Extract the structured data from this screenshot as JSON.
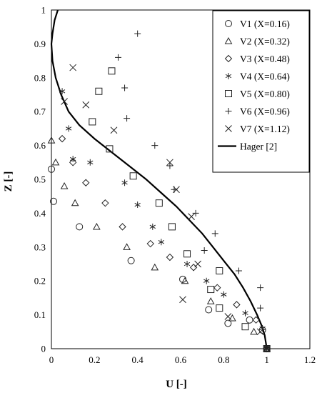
{
  "chart_data": {
    "type": "scatter",
    "xlabel": "U [-]",
    "ylabel": "Z [-]",
    "xlim": [
      0,
      1.2
    ],
    "ylim": [
      0,
      1
    ],
    "xticks": [
      "0",
      "0.2",
      "0.4",
      "0.6",
      "0.8",
      "1",
      "1.2"
    ],
    "yticks": [
      "0",
      "0.1",
      "0.2",
      "0.3",
      "0.4",
      "0.5",
      "0.6",
      "0.7",
      "0.8",
      "0.9",
      "1"
    ],
    "legend_position": "top-right",
    "series": [
      {
        "name": "V1 (X=0.16)",
        "marker": "circle",
        "points": [
          [
            0.0,
            0.53
          ],
          [
            0.01,
            0.435
          ],
          [
            0.13,
            0.36
          ],
          [
            0.37,
            0.26
          ],
          [
            0.61,
            0.205
          ],
          [
            0.73,
            0.115
          ],
          [
            0.82,
            0.075
          ],
          [
            0.92,
            0.085
          ],
          [
            0.98,
            0.055
          ],
          [
            1.0,
            0.0
          ]
        ]
      },
      {
        "name": "V2 (X=0.32)",
        "marker": "triangle",
        "points": [
          [
            0.0,
            0.615
          ],
          [
            0.02,
            0.55
          ],
          [
            0.06,
            0.48
          ],
          [
            0.11,
            0.43
          ],
          [
            0.21,
            0.36
          ],
          [
            0.35,
            0.3
          ],
          [
            0.48,
            0.24
          ],
          [
            0.62,
            0.2
          ],
          [
            0.74,
            0.14
          ],
          [
            0.84,
            0.09
          ],
          [
            0.94,
            0.05
          ],
          [
            1.0,
            0.0
          ]
        ]
      },
      {
        "name": "V3 (X=0.48)",
        "marker": "diamond",
        "points": [
          [
            0.05,
            0.62
          ],
          [
            0.1,
            0.55
          ],
          [
            0.16,
            0.49
          ],
          [
            0.25,
            0.43
          ],
          [
            0.33,
            0.36
          ],
          [
            0.46,
            0.31
          ],
          [
            0.55,
            0.27
          ],
          [
            0.66,
            0.24
          ],
          [
            0.77,
            0.18
          ],
          [
            0.86,
            0.13
          ],
          [
            0.95,
            0.085
          ],
          [
            1.0,
            0.0
          ]
        ]
      },
      {
        "name": "V4 (X=0.64)",
        "marker": "asterisk",
        "points": [
          [
            0.05,
            0.76
          ],
          [
            0.08,
            0.65
          ],
          [
            0.1,
            0.56
          ],
          [
            0.18,
            0.55
          ],
          [
            0.34,
            0.49
          ],
          [
            0.4,
            0.425
          ],
          [
            0.47,
            0.36
          ],
          [
            0.51,
            0.315
          ],
          [
            0.63,
            0.25
          ],
          [
            0.72,
            0.2
          ],
          [
            0.8,
            0.16
          ],
          [
            0.9,
            0.105
          ],
          [
            0.98,
            0.06
          ],
          [
            1.0,
            0.0
          ]
        ]
      },
      {
        "name": "V5 (X=0.80)",
        "marker": "square",
        "points": [
          [
            0.28,
            0.82
          ],
          [
            0.22,
            0.76
          ],
          [
            0.19,
            0.67
          ],
          [
            0.27,
            0.59
          ],
          [
            0.38,
            0.51
          ],
          [
            0.5,
            0.43
          ],
          [
            0.56,
            0.36
          ],
          [
            0.63,
            0.28
          ],
          [
            0.78,
            0.23
          ],
          [
            0.74,
            0.175
          ],
          [
            0.78,
            0.12
          ],
          [
            0.9,
            0.065
          ],
          [
            1.0,
            0.0
          ]
        ]
      },
      {
        "name": "V6 (X=0.96)",
        "marker": "plus",
        "points": [
          [
            0.4,
            0.93
          ],
          [
            0.31,
            0.86
          ],
          [
            0.34,
            0.77
          ],
          [
            0.35,
            0.68
          ],
          [
            0.48,
            0.6
          ],
          [
            0.55,
            0.54
          ],
          [
            0.57,
            0.47
          ],
          [
            0.67,
            0.4
          ],
          [
            0.76,
            0.34
          ],
          [
            0.71,
            0.29
          ],
          [
            0.87,
            0.23
          ],
          [
            0.97,
            0.18
          ],
          [
            0.97,
            0.12
          ],
          [
            1.0,
            0.0
          ]
        ]
      },
      {
        "name": "V7 (X=1.12)",
        "marker": "cross",
        "points": [
          [
            0.1,
            0.83
          ],
          [
            0.06,
            0.73
          ],
          [
            0.16,
            0.72
          ],
          [
            0.29,
            0.645
          ],
          [
            0.55,
            0.55
          ],
          [
            0.58,
            0.47
          ],
          [
            0.65,
            0.39
          ],
          [
            0.68,
            0.25
          ],
          [
            0.61,
            0.145
          ],
          [
            0.82,
            0.095
          ],
          [
            0.97,
            0.05
          ],
          [
            1.0,
            0.0
          ]
        ]
      }
    ],
    "curve": {
      "name": "Hager [2]",
      "points": [
        [
          0.03,
          1.0
        ],
        [
          0.015,
          0.97
        ],
        [
          0.005,
          0.93
        ],
        [
          0.0,
          0.9
        ],
        [
          0.005,
          0.85
        ],
        [
          0.02,
          0.8
        ],
        [
          0.045,
          0.75
        ],
        [
          0.08,
          0.7
        ],
        [
          0.13,
          0.66
        ],
        [
          0.2,
          0.62
        ],
        [
          0.28,
          0.58
        ],
        [
          0.36,
          0.54
        ],
        [
          0.44,
          0.5
        ],
        [
          0.51,
          0.46
        ],
        [
          0.58,
          0.42
        ],
        [
          0.64,
          0.38
        ],
        [
          0.7,
          0.34
        ],
        [
          0.75,
          0.3
        ],
        [
          0.8,
          0.26
        ],
        [
          0.85,
          0.22
        ],
        [
          0.89,
          0.18
        ],
        [
          0.925,
          0.14
        ],
        [
          0.955,
          0.1
        ],
        [
          0.975,
          0.07
        ],
        [
          0.99,
          0.04
        ],
        [
          1.0,
          0.0
        ]
      ]
    }
  }
}
